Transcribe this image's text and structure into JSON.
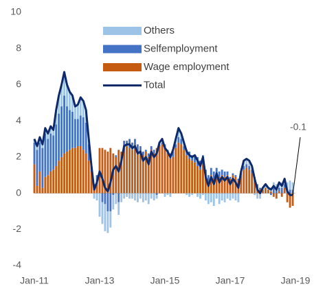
{
  "chart_data": {
    "type": "bar",
    "categories": [
      "Jan-11",
      null,
      null,
      null,
      null,
      null,
      null,
      null,
      null,
      null,
      null,
      null,
      null,
      null,
      null,
      null,
      null,
      null,
      null,
      null,
      null,
      null,
      null,
      null,
      "Jan-13",
      null,
      null,
      null,
      null,
      null,
      null,
      null,
      null,
      null,
      null,
      null,
      null,
      null,
      null,
      null,
      null,
      null,
      null,
      null,
      null,
      null,
      null,
      null,
      "Jan-15",
      null,
      null,
      null,
      null,
      null,
      null,
      null,
      null,
      null,
      null,
      null,
      null,
      null,
      null,
      null,
      null,
      null,
      null,
      null,
      null,
      null,
      null,
      null,
      "Jan-17",
      null,
      null,
      null,
      null,
      null,
      null,
      null,
      null,
      null,
      null,
      null,
      null,
      null,
      null,
      null,
      null,
      null,
      null,
      null,
      null,
      null,
      null,
      null,
      "Jan-19"
    ],
    "series": [
      {
        "name": "Others",
        "color": "#9dc3e6",
        "values": [
          0.2,
          0.2,
          0.3,
          0.2,
          0.3,
          0.3,
          0.4,
          0.3,
          0.8,
          1.0,
          1.2,
          1.3,
          1.2,
          1.0,
          0.9,
          0.7,
          0.8,
          1.0,
          0.9,
          0.7,
          0.3,
          0.0,
          -0.3,
          -0.4,
          -1.3,
          -1.2,
          -1.5,
          -1.2,
          -0.9,
          -0.8,
          -0.6,
          -0.7,
          -0.5,
          -0.3,
          -0.2,
          -0.3,
          -0.3,
          -0.4,
          -0.5,
          -0.3,
          -0.5,
          -0.4,
          -0.6,
          -0.3,
          -0.4,
          -0.2,
          0.1,
          0.2,
          -0.2,
          -0.1,
          -0.2,
          0.1,
          0.3,
          0.5,
          0.3,
          0.2,
          -0.1,
          -0.2,
          -0.1,
          0.1,
          -0.2,
          -0.3,
          -0.1,
          -0.4,
          -0.6,
          -0.5,
          -0.7,
          -0.3,
          -0.6,
          -0.4,
          -0.5,
          -0.3,
          -0.4,
          -0.3,
          -0.4,
          -0.5,
          0.0,
          0.3,
          0.3,
          0.3,
          0.2,
          -0.1,
          -0.3,
          -0.3,
          0.1,
          0.2,
          0.1,
          0.2,
          0.3,
          0.2,
          0.3,
          0.3,
          0.3,
          0.4,
          0.5,
          0.4,
          null
        ]
      },
      {
        "name": "Selfemployment",
        "color": "#4472c4",
        "values": [
          1.2,
          2.0,
          1.6,
          2.2,
          2.4,
          2.0,
          2.1,
          1.9,
          2.3,
          2.6,
          2.8,
          3.2,
          2.5,
          2.2,
          2.0,
          1.6,
          1.5,
          1.7,
          1.8,
          1.7,
          0.9,
          0.3,
          0.2,
          0.5,
          0.0,
          -0.5,
          -0.6,
          -1.0,
          -1.0,
          -0.1,
          0.1,
          -0.5,
          0.0,
          0.4,
          0.3,
          0.5,
          0.4,
          0.5,
          0.5,
          0.3,
          0.2,
          0.1,
          0.2,
          0.2,
          0.2,
          -0.1,
          0.1,
          0.1,
          0.2,
          0.2,
          0.3,
          0.3,
          0.2,
          0.3,
          0.3,
          0.2,
          0.3,
          0.4,
          0.3,
          0.3,
          0.5,
          0.5,
          0.5,
          0.3,
          0.3,
          0.4,
          0.4,
          0.3,
          0.3,
          0.3,
          0.3,
          0.2,
          0.1,
          0.1,
          0.1,
          0.1,
          0.2,
          0.2,
          0.2,
          0.2,
          0.2,
          0.1,
          0.1,
          0.1,
          0.0,
          0.0,
          0.0,
          -0.1,
          0.3,
          0.3,
          0.2,
          0.3,
          0.2,
          0.2,
          0.2,
          0.2,
          null
        ]
      },
      {
        "name": "Wage employment",
        "color": "#c55a11",
        "values": [
          1.6,
          0.4,
          1.2,
          0.3,
          0.9,
          1.0,
          1.2,
          1.3,
          1.5,
          1.8,
          2.0,
          2.2,
          2.3,
          2.4,
          2.5,
          2.5,
          2.6,
          2.6,
          2.4,
          2.2,
          1.8,
          1.2,
          0.3,
          0.5,
          2.5,
          2.5,
          2.4,
          2.3,
          2.5,
          2.2,
          2.0,
          2.4,
          2.3,
          2.5,
          2.6,
          2.5,
          2.4,
          2.5,
          2.2,
          2.3,
          2.1,
          2.3,
          2.0,
          2.4,
          2.2,
          2.5,
          2.6,
          2.7,
          2.5,
          2.2,
          1.9,
          2.0,
          2.5,
          2.8,
          2.7,
          2.4,
          2.1,
          1.9,
          1.8,
          1.7,
          1.5,
          1.3,
          1.6,
          1.0,
          0.7,
          1.0,
          0.8,
          1.1,
          0.9,
          1.0,
          0.9,
          1.0,
          0.8,
          1.0,
          0.9,
          0.7,
          1.0,
          1.3,
          1.4,
          1.3,
          1.1,
          0.8,
          0.4,
          0.2,
          0.2,
          0.3,
          0.2,
          0.1,
          -0.2,
          -0.3,
          0.1,
          -0.2,
          0.3,
          -0.5,
          -0.8,
          -0.7,
          null
        ]
      },
      {
        "name": "Total",
        "color": "#0e2a6b",
        "type": "line",
        "values": [
          3.0,
          2.6,
          3.1,
          2.7,
          3.6,
          3.3,
          3.7,
          3.5,
          4.6,
          5.4,
          6.0,
          6.7,
          6.0,
          5.6,
          5.4,
          4.8,
          4.9,
          5.3,
          5.1,
          4.6,
          3.0,
          1.5,
          0.2,
          0.6,
          1.2,
          0.8,
          0.3,
          0.1,
          0.6,
          1.3,
          1.5,
          1.2,
          1.8,
          2.6,
          2.7,
          2.7,
          2.5,
          2.6,
          2.2,
          2.3,
          1.8,
          2.0,
          1.6,
          2.3,
          2.0,
          2.2,
          2.8,
          3.0,
          2.5,
          2.3,
          2.0,
          2.4,
          3.0,
          3.6,
          3.3,
          2.8,
          2.3,
          2.1,
          2.0,
          2.1,
          1.8,
          1.5,
          2.0,
          0.9,
          0.4,
          0.9,
          0.5,
          1.1,
          0.6,
          0.9,
          0.7,
          0.9,
          0.5,
          0.8,
          0.6,
          0.3,
          1.2,
          1.8,
          1.9,
          1.8,
          1.5,
          0.8,
          0.2,
          0.0,
          0.3,
          0.5,
          0.3,
          0.2,
          0.4,
          0.2,
          0.6,
          0.4,
          0.8,
          0.1,
          -0.1,
          -0.1,
          null
        ]
      }
    ],
    "annotation": "-0.1",
    "ylim": [
      -4,
      10
    ],
    "yticks": [
      -4,
      -2,
      0,
      2,
      4,
      6,
      8,
      10
    ],
    "legend": "top"
  }
}
